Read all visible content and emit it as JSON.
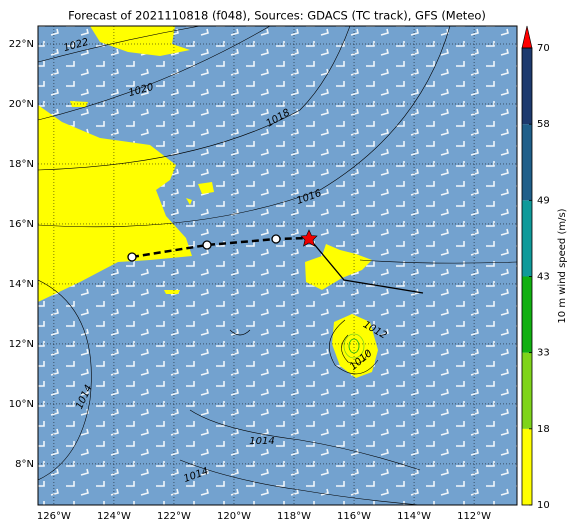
{
  "header": {
    "title": "Forecast of 2021110818 (f048), Sources: GDACS (TC track), GFS (Meteo)"
  },
  "map": {
    "lat_labels": [
      {
        "value": 22,
        "label": "22°N"
      },
      {
        "value": 20,
        "label": "20°N"
      },
      {
        "value": 18,
        "label": "18°N"
      },
      {
        "value": 16,
        "label": "16°N"
      },
      {
        "value": 14,
        "label": "14°N"
      },
      {
        "value": 12,
        "label": "12°N"
      },
      {
        "value": 10,
        "label": "10°N"
      },
      {
        "value": 8,
        "label": "8°N"
      }
    ],
    "lon_labels": [
      {
        "value": -126,
        "label": "126°W"
      },
      {
        "value": -124,
        "label": "124°W"
      },
      {
        "value": -122,
        "label": "122°W"
      },
      {
        "value": -120,
        "label": "120°W"
      },
      {
        "value": -118,
        "label": "118°W"
      },
      {
        "value": -116,
        "label": "116°W"
      },
      {
        "value": -114,
        "label": "114°W"
      },
      {
        "value": -112,
        "label": "112°W"
      }
    ],
    "isobar_labels": [
      "1022",
      "1020",
      "1018",
      "1016",
      "1012",
      "1010",
      "1014",
      "1014",
      "1014"
    ]
  },
  "colorbar": {
    "label": "10 m wind speed (m/s)",
    "ticks": [
      10,
      18,
      33,
      43,
      49,
      58,
      70
    ],
    "colors": [
      "#ffff00",
      "#7fd41a",
      "#11b011",
      "#0f9a9a",
      "#1f5f8a",
      "#1d3a6e"
    ],
    "extend_color": "#ff0000"
  }
}
